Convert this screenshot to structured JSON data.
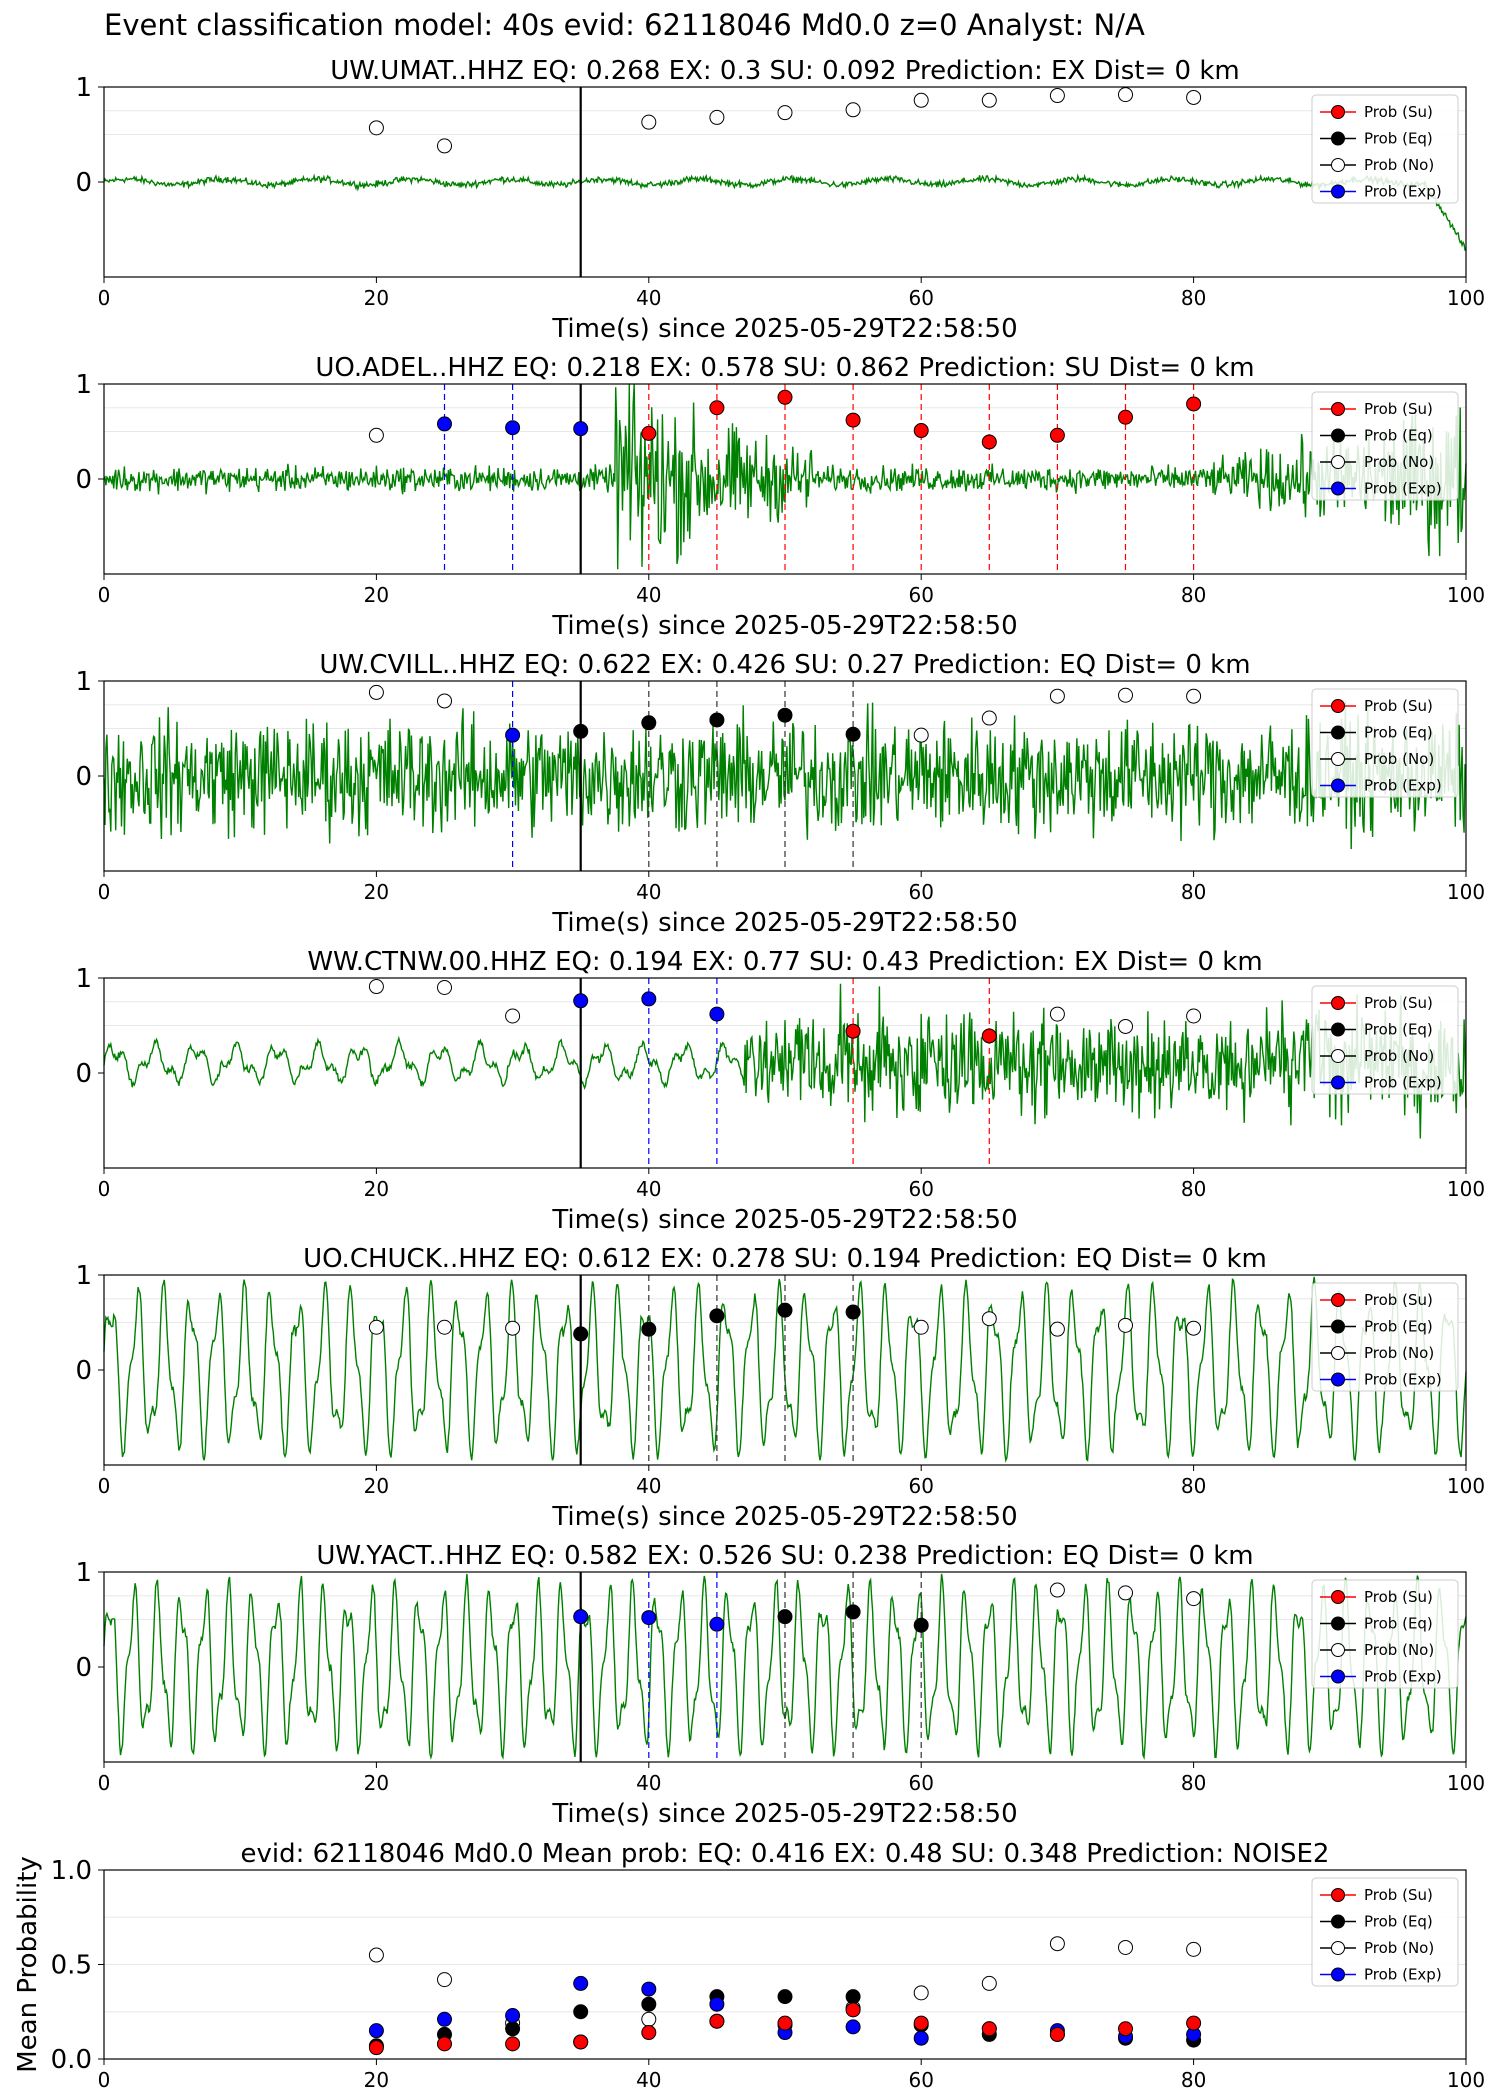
{
  "suptitle": "Event classification model: 40s evid: 62118046 Md0.0 z=0 Analyst: N/A",
  "colors": {
    "waveform": "#008000",
    "su": "#ff0000",
    "eq": "#000000",
    "no": "#ffffff",
    "exp": "#0000ff",
    "pick_line": "#000000"
  },
  "legend": [
    "Prob (Su)",
    "Prob (Eq)",
    "Prob (No)",
    "Prob (Exp)"
  ],
  "chart_data": [
    {
      "type": "line",
      "title": "UW.UMAT..HHZ   EQ: 0.268  EX: 0.3  SU: 0.092   Prediction: EX    Dist= 0 km",
      "xlabel": "Time(s) since 2025-05-29T22:58:50",
      "ylabel": "",
      "xlim": [
        0,
        100
      ],
      "ylim": [
        -1,
        1
      ],
      "xticks": [
        "0",
        "20",
        "40",
        "60",
        "80",
        "100"
      ],
      "yticks": [
        "0",
        "1"
      ],
      "legend_position": "top-right",
      "pick_time": 35,
      "waveform_character": "low-amplitude noise",
      "points": {
        "t": [
          20,
          25,
          40,
          45,
          50,
          55,
          60,
          65,
          70,
          75,
          80
        ],
        "class": [
          "No",
          "No",
          "No",
          "No",
          "No",
          "No",
          "No",
          "No",
          "No",
          "No",
          "No"
        ],
        "prob": [
          0.57,
          0.38,
          0.63,
          0.68,
          0.73,
          0.76,
          0.86,
          0.86,
          0.91,
          0.92,
          0.89
        ]
      }
    },
    {
      "type": "line",
      "title": "UO.ADEL..HHZ   EQ: 0.218  EX: 0.578  SU: 0.862   Prediction: SU    Dist= 0 km",
      "xlabel": "Time(s) since 2025-05-29T22:58:50",
      "ylabel": "",
      "xlim": [
        0,
        100
      ],
      "ylim": [
        -1,
        1
      ],
      "xticks": [
        "0",
        "20",
        "40",
        "60",
        "80",
        "100"
      ],
      "yticks": [
        "0",
        "1"
      ],
      "legend_position": "top-right",
      "pick_time": 35,
      "waveform_character": "noise with burst after 38 s",
      "points": {
        "t": [
          20,
          25,
          30,
          35,
          40,
          45,
          50,
          55,
          60,
          65,
          70,
          75,
          80
        ],
        "class": [
          "No",
          "Exp",
          "Exp",
          "Exp",
          "Su",
          "Su",
          "Su",
          "Su",
          "Su",
          "Su",
          "Su",
          "Su",
          "Su"
        ],
        "prob": [
          0.46,
          0.58,
          0.54,
          0.53,
          0.48,
          0.75,
          0.86,
          0.62,
          0.51,
          0.39,
          0.46,
          0.65,
          0.79
        ]
      }
    },
    {
      "type": "line",
      "title": "UW.CVILL..HHZ   EQ: 0.622  EX: 0.426  SU: 0.27   Prediction: EQ    Dist= 0 km",
      "xlabel": "Time(s) since 2025-05-29T22:58:50",
      "ylabel": "",
      "xlim": [
        0,
        100
      ],
      "ylim": [
        -1,
        1
      ],
      "xticks": [
        "0",
        "20",
        "40",
        "60",
        "80",
        "100"
      ],
      "yticks": [
        "0",
        "1"
      ],
      "legend_position": "top-right",
      "pick_time": 35,
      "waveform_character": "high-amplitude noise throughout",
      "points": {
        "t": [
          20,
          25,
          30,
          35,
          40,
          45,
          50,
          55,
          60,
          65,
          70,
          75,
          80
        ],
        "class": [
          "No",
          "No",
          "Exp",
          "Eq",
          "Eq",
          "Eq",
          "Eq",
          "Eq",
          "No",
          "No",
          "No",
          "No",
          "No"
        ],
        "prob": [
          0.88,
          0.79,
          0.43,
          0.47,
          0.56,
          0.59,
          0.64,
          0.44,
          0.43,
          0.61,
          0.84,
          0.85,
          0.84
        ]
      }
    },
    {
      "type": "line",
      "title": "WW.CTNW.00.HHZ   EQ: 0.194  EX: 0.77  SU: 0.43   Prediction: EX    Dist= 0 km",
      "xlabel": "Time(s) since 2025-05-29T22:58:50",
      "ylabel": "",
      "xlim": [
        0,
        100
      ],
      "ylim": [
        -1,
        1
      ],
      "xticks": [
        "0",
        "20",
        "40",
        "60",
        "80",
        "100"
      ],
      "yticks": [
        "0",
        "1"
      ],
      "legend_position": "top-right",
      "pick_time": 35,
      "waveform_character": "low-frequency wobble then burst after 47 s",
      "points": {
        "t": [
          20,
          25,
          30,
          35,
          40,
          45,
          55,
          65,
          70,
          75,
          80
        ],
        "class": [
          "No",
          "No",
          "No",
          "Exp",
          "Exp",
          "Exp",
          "Su",
          "Su",
          "No",
          "No",
          "No"
        ],
        "prob": [
          0.91,
          0.9,
          0.6,
          0.76,
          0.78,
          0.62,
          0.44,
          0.39,
          0.62,
          0.49,
          0.6
        ]
      }
    },
    {
      "type": "line",
      "title": "UO.CHUCK..HHZ   EQ: 0.612  EX: 0.278  SU: 0.194   Prediction: EQ    Dist= 0 km",
      "xlabel": "Time(s) since 2025-05-29T22:58:50",
      "ylabel": "",
      "xlim": [
        0,
        100
      ],
      "ylim": [
        -1,
        1
      ],
      "xticks": [
        "0",
        "20",
        "40",
        "60",
        "80",
        "100"
      ],
      "yticks": [
        "0",
        "1"
      ],
      "legend_position": "top-right",
      "pick_time": 35,
      "waveform_character": "large low-frequency oscillation",
      "points": {
        "t": [
          20,
          25,
          30,
          35,
          40,
          45,
          50,
          55,
          60,
          65,
          70,
          75,
          80
        ],
        "class": [
          "No",
          "No",
          "No",
          "Eq",
          "Eq",
          "Eq",
          "Eq",
          "Eq",
          "No",
          "No",
          "No",
          "No",
          "No"
        ],
        "prob": [
          0.45,
          0.45,
          0.44,
          0.38,
          0.43,
          0.57,
          0.63,
          0.61,
          0.45,
          0.54,
          0.43,
          0.47,
          0.44
        ]
      }
    },
    {
      "type": "line",
      "title": "UW.YACT..HHZ   EQ: 0.582  EX: 0.526  SU: 0.238   Prediction: EQ    Dist= 0 km",
      "xlabel": "Time(s) since 2025-05-29T22:58:50",
      "ylabel": "",
      "xlim": [
        0,
        100
      ],
      "ylim": [
        -1,
        1
      ],
      "xticks": [
        "0",
        "20",
        "40",
        "60",
        "80",
        "100"
      ],
      "yticks": [
        "0",
        "1"
      ],
      "legend_position": "top-right",
      "pick_time": 35,
      "waveform_character": "large low-frequency oscillation",
      "points": {
        "t": [
          35,
          40,
          45,
          50,
          55,
          60,
          70,
          75,
          80
        ],
        "class": [
          "Exp",
          "Exp",
          "Exp",
          "Eq",
          "Eq",
          "Eq",
          "No",
          "No",
          "No"
        ],
        "prob": [
          0.53,
          0.52,
          0.45,
          0.53,
          0.58,
          0.44,
          0.81,
          0.78,
          0.72
        ]
      }
    },
    {
      "type": "scatter",
      "title": "evid: 62118046  Md0.0   Mean prob:   EQ: 0.416  EX: 0.48  SU: 0.348   Prediction: NOISE2",
      "xlabel": "",
      "ylabel": "Mean Probability",
      "xlim": [
        0,
        100
      ],
      "ylim": [
        0,
        1
      ],
      "xticks": [
        "0",
        "20",
        "40",
        "60",
        "80",
        "100"
      ],
      "yticks": [
        "0.0",
        "0.5",
        "1.0"
      ],
      "legend_position": "top-right",
      "x": [
        20,
        25,
        30,
        35,
        40,
        45,
        50,
        55,
        60,
        65,
        70,
        75,
        80
      ],
      "series": [
        {
          "name": "Prob (No)",
          "values": [
            0.55,
            0.42,
            0.19,
            0.09,
            0.21,
            0.2,
            0.18,
            0.27,
            0.35,
            0.4,
            0.61,
            0.59,
            0.58
          ]
        },
        {
          "name": "Prob (Eq)",
          "values": [
            0.07,
            0.13,
            0.16,
            0.25,
            0.29,
            0.33,
            0.33,
            0.33,
            0.18,
            0.13,
            0.13,
            0.11,
            0.1
          ]
        },
        {
          "name": "Prob (Exp)",
          "values": [
            0.15,
            0.21,
            0.23,
            0.4,
            0.37,
            0.29,
            0.14,
            0.17,
            0.11,
            0.16,
            0.15,
            0.12,
            0.13
          ]
        },
        {
          "name": "Prob (Su)",
          "values": [
            0.06,
            0.08,
            0.08,
            0.09,
            0.14,
            0.2,
            0.19,
            0.26,
            0.19,
            0.16,
            0.13,
            0.16,
            0.19
          ]
        }
      ]
    }
  ]
}
